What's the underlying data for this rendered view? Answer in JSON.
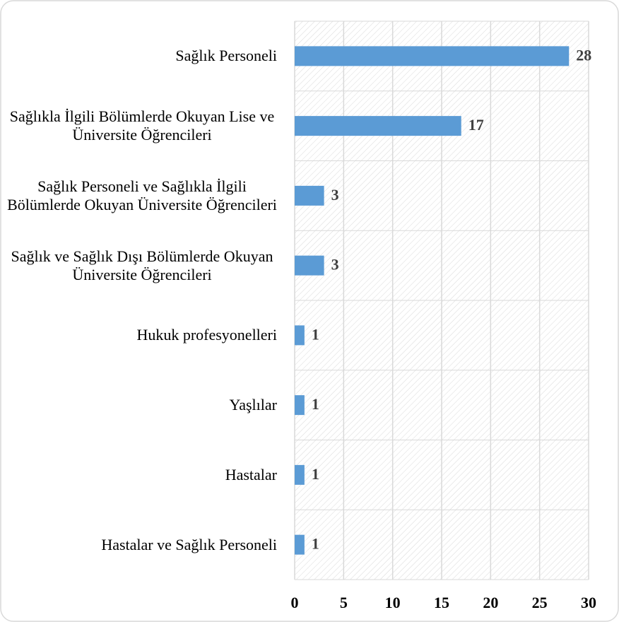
{
  "chart_data": {
    "type": "bar",
    "orientation": "horizontal",
    "categories": [
      "Sağlık Personeli",
      "Sağlıkla İlgili Bölümlerde Okuyan Lise ve Üniversite Öğrencileri",
      "Sağlık Personeli ve Sağlıkla İlgili Bölümlerde Okuyan Üniversite Öğrencileri",
      "Sağlık ve Sağlık Dışı Bölümlerde Okuyan Üniversite Öğrencileri",
      "Hukuk profesyonelleri",
      "Yaşlılar",
      "Hastalar",
      "Hastalar ve Sağlık Personeli"
    ],
    "values": [
      28,
      17,
      3,
      3,
      1,
      1,
      1,
      1
    ],
    "color": "#5b9bd5",
    "xlim": [
      0,
      30
    ],
    "xticks": [
      0,
      5,
      10,
      15,
      20,
      25,
      30
    ],
    "grid": true
  }
}
